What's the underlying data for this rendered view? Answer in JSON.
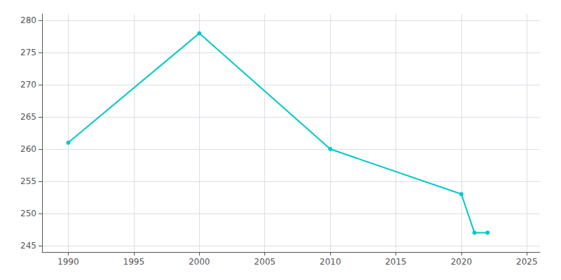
{
  "chart_data": {
    "type": "line",
    "x": [
      1990,
      2000,
      2010,
      2020,
      2021,
      2022
    ],
    "values": [
      261,
      278,
      260,
      253,
      247,
      247
    ],
    "color": "#00C8C8",
    "marker": "circle",
    "xlim": [
      1988,
      2026
    ],
    "ylim": [
      244,
      281
    ],
    "xticks": [
      1990,
      1995,
      2000,
      2005,
      2010,
      2015,
      2020,
      2025
    ],
    "yticks": [
      245,
      250,
      255,
      260,
      265,
      270,
      275,
      280
    ],
    "grid": true
  }
}
